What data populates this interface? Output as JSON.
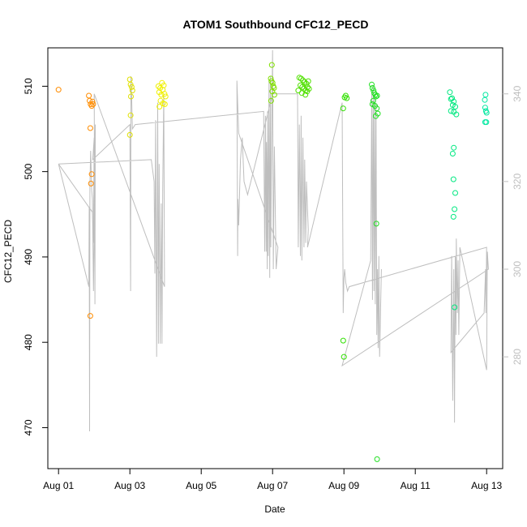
{
  "chart_data": {
    "type": "scatter",
    "title": "ATOM1 Southbound CFC12_PECD",
    "xlabel": "Date",
    "ylabel": "CFC12_PECD",
    "x_domain_days": [
      -0.3,
      12.45
    ],
    "x_ticks": [
      {
        "day": 0,
        "label": "Aug 01"
      },
      {
        "day": 2,
        "label": "Aug 03"
      },
      {
        "day": 4,
        "label": "Aug 05"
      },
      {
        "day": 6,
        "label": "Aug 07"
      },
      {
        "day": 8,
        "label": "Aug 09"
      },
      {
        "day": 10,
        "label": "Aug 11"
      },
      {
        "day": 12,
        "label": "Aug 13"
      }
    ],
    "ylim": [
      465.2,
      514.5
    ],
    "y_ticks": [
      470,
      480,
      490,
      500,
      510
    ],
    "y2_label": "",
    "y2lim": [
      254.5,
      350.5
    ],
    "y2_ticks": [
      280,
      300,
      320,
      340
    ],
    "grid": false,
    "colors": {
      "line": "#bebebe",
      "axis": "#000000",
      "right_axis": "#bebebe",
      "aug01": "#ff8c00",
      "aug03": "#e0e000",
      "aug04": "#f0f000",
      "aug06": "#80e000",
      "aug07": "#50e000",
      "aug08": "#30e000",
      "aug09": "#20e020",
      "aug12": "#00e880",
      "aug13": "#00e8a0"
    },
    "series": [
      {
        "color_key": "aug01",
        "points": [
          [
            0.0,
            509.6
          ],
          [
            0.85,
            508.9
          ],
          [
            0.87,
            508.3
          ],
          [
            0.9,
            507.9
          ],
          [
            0.93,
            507.7
          ],
          [
            0.95,
            508.2
          ],
          [
            0.97,
            507.9
          ],
          [
            0.89,
            505.1
          ],
          [
            0.93,
            499.7
          ],
          [
            0.91,
            498.6
          ],
          [
            0.89,
            483.1
          ]
        ]
      },
      {
        "color_key": "aug03",
        "points": [
          [
            2.0,
            510.8
          ],
          [
            2.02,
            510.2
          ],
          [
            2.05,
            509.9
          ],
          [
            2.07,
            509.5
          ],
          [
            2.03,
            508.8
          ],
          [
            2.02,
            506.6
          ],
          [
            2.0,
            504.3
          ]
        ]
      },
      {
        "color_key": "aug04",
        "points": [
          [
            2.8,
            510.0
          ],
          [
            2.85,
            509.8
          ],
          [
            2.9,
            510.4
          ],
          [
            2.95,
            510.1
          ],
          [
            2.82,
            509.3
          ],
          [
            2.88,
            509.0
          ],
          [
            2.92,
            509.6
          ],
          [
            2.97,
            509.1
          ],
          [
            3.0,
            508.8
          ],
          [
            2.86,
            508.3
          ],
          [
            2.93,
            508.0
          ],
          [
            2.98,
            507.9
          ],
          [
            2.83,
            507.6
          ]
        ]
      },
      {
        "color_key": "aug06",
        "points": [
          [
            5.98,
            512.5
          ],
          [
            5.95,
            510.9
          ],
          [
            5.97,
            510.6
          ],
          [
            6.0,
            510.4
          ],
          [
            6.02,
            510.0
          ],
          [
            6.04,
            509.8
          ],
          [
            5.99,
            509.4
          ],
          [
            6.05,
            509.0
          ],
          [
            5.96,
            508.3
          ]
        ]
      },
      {
        "color_key": "aug07",
        "points": [
          [
            6.75,
            511.0
          ],
          [
            6.8,
            510.9
          ],
          [
            6.85,
            510.7
          ],
          [
            6.9,
            510.5
          ],
          [
            6.95,
            510.3
          ],
          [
            7.0,
            510.6
          ],
          [
            6.78,
            510.1
          ],
          [
            6.83,
            509.9
          ],
          [
            6.88,
            509.7
          ],
          [
            6.93,
            509.5
          ],
          [
            6.98,
            509.9
          ],
          [
            7.02,
            509.7
          ],
          [
            6.82,
            509.2
          ],
          [
            6.92,
            509.0
          ],
          [
            6.97,
            509.4
          ],
          [
            6.72,
            509.5
          ]
        ]
      },
      {
        "color_key": "aug08",
        "points": [
          [
            8.05,
            508.9
          ],
          [
            8.08,
            508.6
          ],
          [
            8.02,
            508.7
          ],
          [
            7.98,
            507.4
          ],
          [
            7.98,
            480.2
          ],
          [
            8.0,
            478.3
          ]
        ]
      },
      {
        "color_key": "aug09",
        "points": [
          [
            8.78,
            510.2
          ],
          [
            8.8,
            509.8
          ],
          [
            8.83,
            509.5
          ],
          [
            8.85,
            509.2
          ],
          [
            8.88,
            509.0
          ],
          [
            8.9,
            508.8
          ],
          [
            8.93,
            508.9
          ],
          [
            8.82,
            508.3
          ],
          [
            8.87,
            507.7
          ],
          [
            8.92,
            507.4
          ],
          [
            8.95,
            506.8
          ],
          [
            8.89,
            506.5
          ],
          [
            8.8,
            507.9
          ],
          [
            8.91,
            493.9
          ],
          [
            8.93,
            466.3
          ]
        ]
      },
      {
        "color_key": "aug12",
        "points": [
          [
            10.97,
            509.3
          ],
          [
            11.0,
            508.5
          ],
          [
            11.03,
            508.6
          ],
          [
            11.08,
            508.2
          ],
          [
            11.05,
            507.8
          ],
          [
            11.12,
            507.6
          ],
          [
            11.0,
            507.1
          ],
          [
            11.08,
            507.0
          ],
          [
            11.15,
            506.7
          ],
          [
            11.08,
            502.8
          ],
          [
            11.05,
            502.1
          ],
          [
            11.07,
            499.1
          ],
          [
            11.12,
            497.5
          ],
          [
            11.1,
            495.6
          ],
          [
            11.07,
            494.7
          ],
          [
            11.1,
            484.1
          ]
        ]
      },
      {
        "color_key": "aug13",
        "points": [
          [
            11.97,
            509.0
          ],
          [
            11.95,
            508.4
          ],
          [
            11.96,
            507.5
          ],
          [
            11.98,
            507.1
          ],
          [
            12.0,
            506.9
          ],
          [
            11.96,
            505.8
          ],
          [
            11.99,
            505.8
          ]
        ]
      }
    ],
    "line_series_y2": [
      [
        0.0,
        324.0
      ],
      [
        2.6,
        325.0
      ],
      [
        2.68,
        320.0
      ],
      [
        2.7,
        299.0
      ],
      [
        2.72,
        334.0
      ],
      [
        2.75,
        280.0
      ],
      [
        2.78,
        338.0
      ],
      [
        2.8,
        283.0
      ],
      [
        2.82,
        324.0
      ],
      [
        2.85,
        283.0
      ],
      [
        2.88,
        315.0
      ],
      [
        2.9,
        283.0
      ],
      [
        2.92,
        318.0
      ],
      [
        2.95,
        340.0
      ],
      [
        2.97,
        296.0
      ],
      [
        1.0,
        340.0
      ],
      [
        1.02,
        292.0
      ],
      [
        1.03,
        333.0
      ],
      [
        0.98,
        295.0
      ],
      [
        0.95,
        316.0
      ],
      [
        0.93,
        318.0
      ],
      [
        0.9,
        327.0
      ],
      [
        0.88,
        319.0
      ],
      [
        0.87,
        263.0
      ],
      [
        0.86,
        314.0
      ],
      [
        0.85,
        296.0
      ],
      [
        0.0,
        324.0
      ],
      [
        0.95,
        313.0
      ],
      [
        0.97,
        306.0
      ],
      [
        0.98,
        310.0
      ],
      [
        1.0,
        330.0
      ],
      [
        0.96,
        325.0
      ],
      [
        2.0,
        333.0
      ],
      [
        2.02,
        295.0
      ],
      [
        2.03,
        344.0
      ],
      [
        2.05,
        339.0
      ],
      [
        2.07,
        332.0
      ],
      [
        2.15,
        333.0
      ],
      [
        5.75,
        336.0
      ],
      [
        5.78,
        304.0
      ],
      [
        5.8,
        335.0
      ],
      [
        5.82,
        304.0
      ],
      [
        5.83,
        329.0
      ],
      [
        5.85,
        300.0
      ],
      [
        5.86,
        336.0
      ],
      [
        5.88,
        303.0
      ],
      [
        5.9,
        343.0
      ],
      [
        5.92,
        298.0
      ],
      [
        5.94,
        344.0
      ],
      [
        5.95,
        305.0
      ],
      [
        5.97,
        327.0
      ],
      [
        6.0,
        350.0
      ],
      [
        6.02,
        300.0
      ],
      [
        6.05,
        328.0
      ],
      [
        6.1,
        300.0
      ],
      [
        6.15,
        305.0
      ],
      [
        5.05,
        331.0
      ],
      [
        5.0,
        343.0
      ],
      [
        5.02,
        303.0
      ],
      [
        5.03,
        316.0
      ],
      [
        5.05,
        310.0
      ],
      [
        5.1,
        325.0
      ],
      [
        5.15,
        330.0
      ],
      [
        5.2,
        320.0
      ],
      [
        5.3,
        317.0
      ],
      [
        6.0,
        340.0
      ],
      [
        6.7,
        340.0
      ],
      [
        6.72,
        305.0
      ],
      [
        6.75,
        333.0
      ],
      [
        6.78,
        303.0
      ],
      [
        6.8,
        335.0
      ],
      [
        6.82,
        302.0
      ],
      [
        6.85,
        330.0
      ],
      [
        6.88,
        305.0
      ],
      [
        6.9,
        325.0
      ],
      [
        6.93,
        306.0
      ],
      [
        6.95,
        320.0
      ],
      [
        7.0,
        309.0
      ],
      [
        6.98,
        305.0
      ],
      [
        7.95,
        338.0
      ],
      [
        7.98,
        290.0
      ],
      [
        8.0,
        298.0
      ],
      [
        8.02,
        300.0
      ],
      [
        8.05,
        297.0
      ],
      [
        8.1,
        295.0
      ],
      [
        8.15,
        296.0
      ],
      [
        12.0,
        305.0
      ],
      [
        11.98,
        290.0
      ],
      [
        11.97,
        300.0
      ],
      [
        11.95,
        295.0
      ],
      [
        11.93,
        290.0
      ],
      [
        11.0,
        281.0
      ],
      [
        11.02,
        303.0
      ],
      [
        11.05,
        270.0
      ],
      [
        11.08,
        300.0
      ],
      [
        11.1,
        265.0
      ],
      [
        11.12,
        303.0
      ],
      [
        11.14,
        285.0
      ],
      [
        11.15,
        307.0
      ],
      [
        11.18,
        290.0
      ],
      [
        11.2,
        302.0
      ],
      [
        11.22,
        285.0
      ],
      [
        11.25,
        305.0
      ],
      [
        12.0,
        277.0
      ],
      [
        12.02,
        304.0
      ],
      [
        12.05,
        300.0
      ],
      [
        7.95,
        278.0
      ],
      [
        8.75,
        302.0
      ],
      [
        8.78,
        340.0
      ],
      [
        8.8,
        293.0
      ],
      [
        8.82,
        342.0
      ],
      [
        8.84,
        295.0
      ],
      [
        8.86,
        340.0
      ],
      [
        8.88,
        292.0
      ],
      [
        8.9,
        338.0
      ],
      [
        8.92,
        285.0
      ],
      [
        8.94,
        300.0
      ],
      [
        8.96,
        282.0
      ],
      [
        8.98,
        303.0
      ],
      [
        9.0,
        280.0
      ],
      [
        9.05,
        300.0
      ]
    ]
  }
}
